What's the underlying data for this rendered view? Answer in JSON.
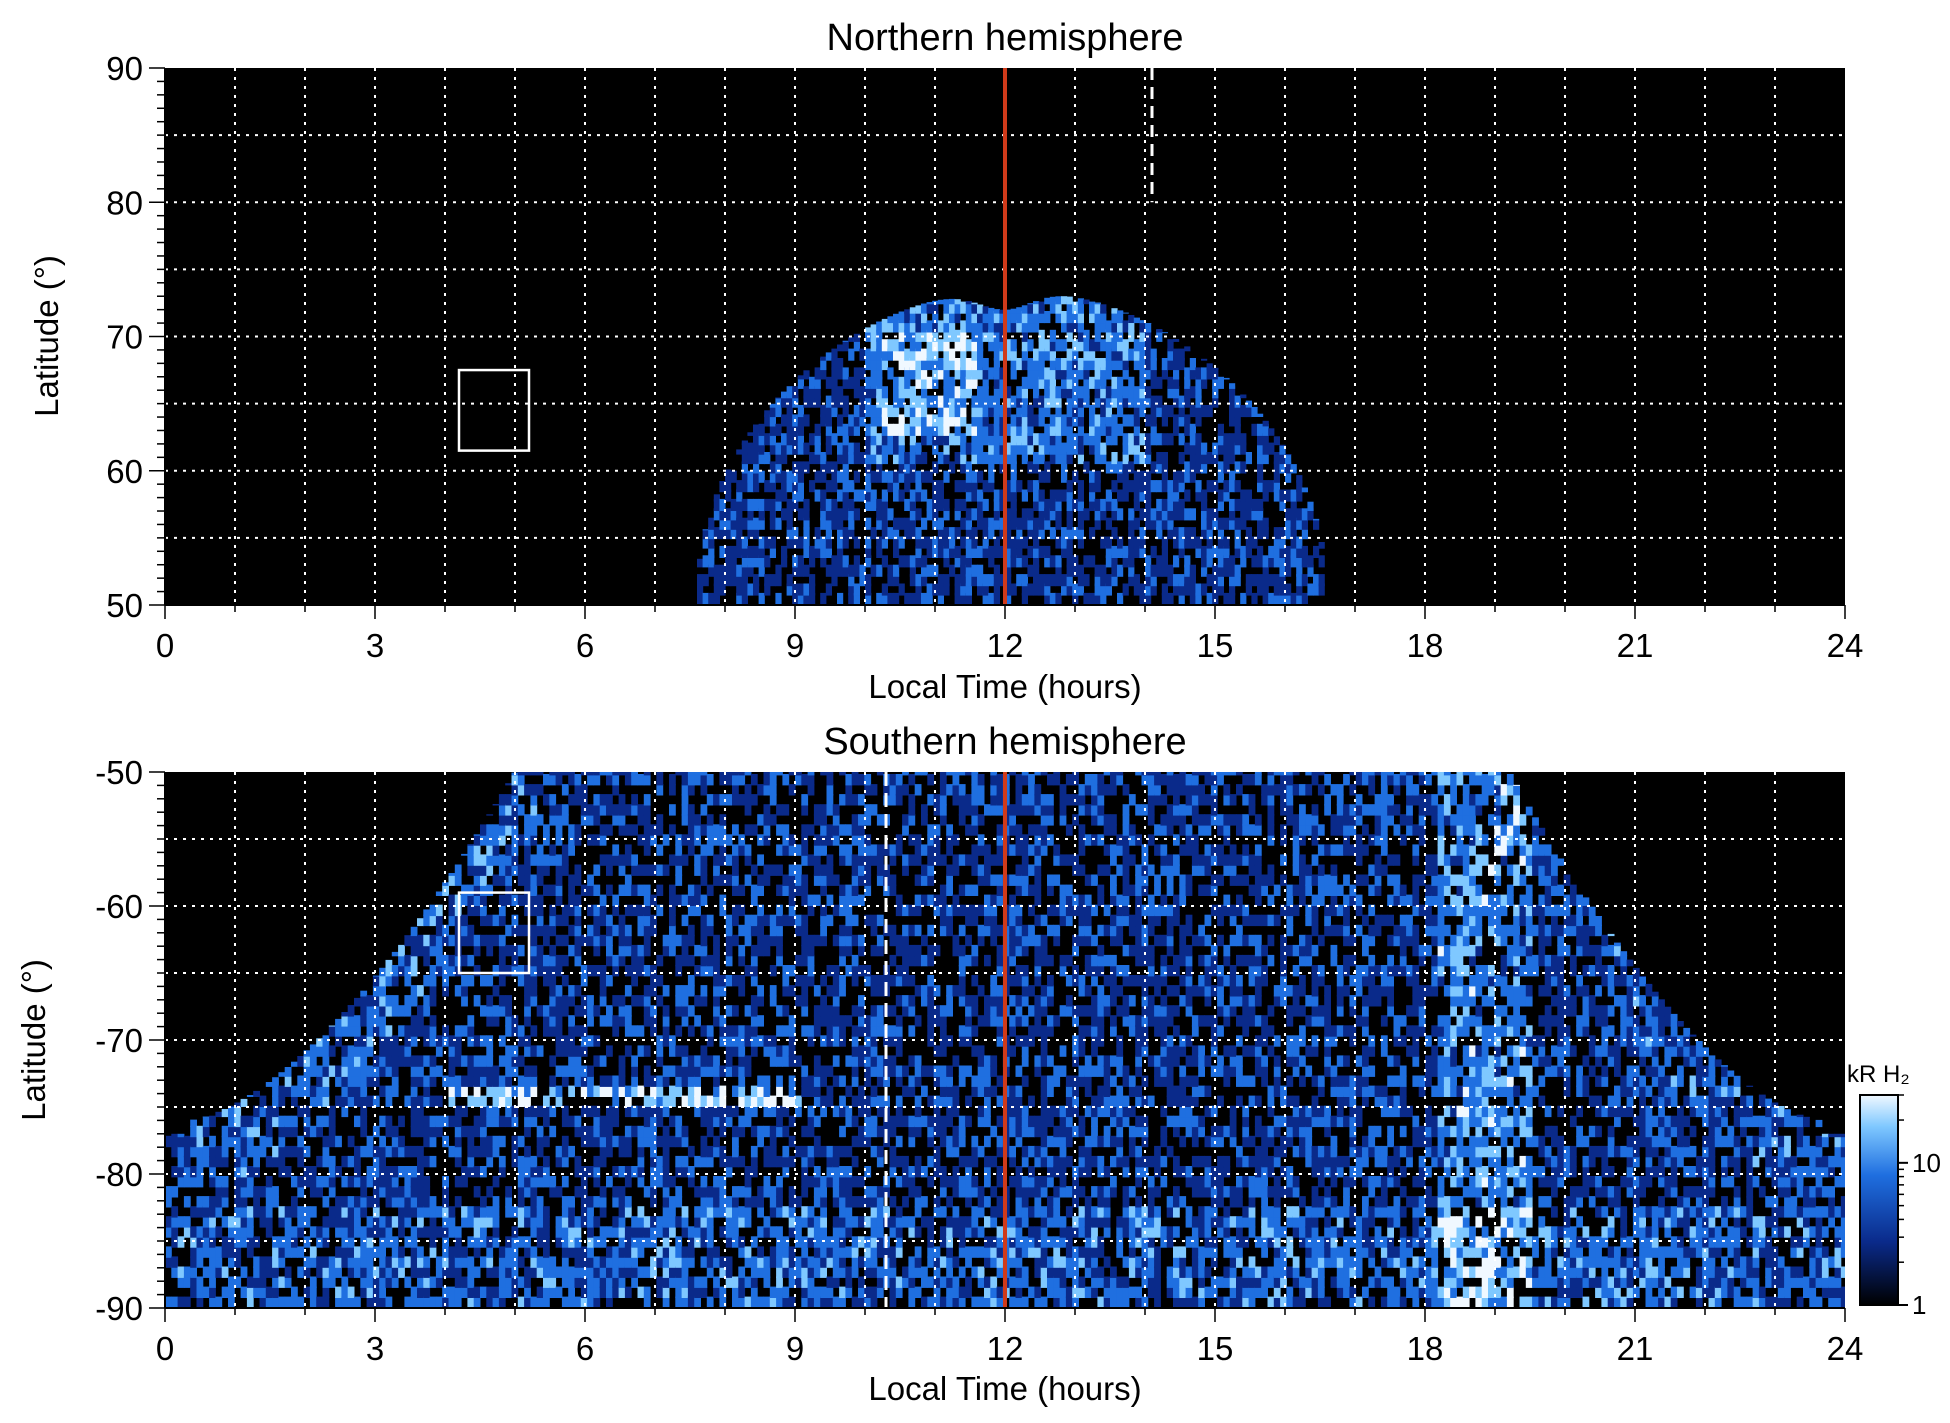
{
  "colors": {
    "background": "#000000",
    "aurora_dim": "#0a2a8a",
    "aurora_mid": "#1f6fe0",
    "aurora_bright": "#7fc8ff",
    "aurora_peak": "#f0f8ff",
    "noon_line": "#d03a1a",
    "grid": "#ffffff",
    "box": "#ffffff"
  },
  "chart_data": [
    {
      "type": "heatmap",
      "title": "Northern hemisphere",
      "xlabel": "Local Time (hours)",
      "ylabel": "Latitude (°)",
      "xlim": [
        0,
        24
      ],
      "ylim": [
        50,
        90
      ],
      "xticks": [
        0,
        3,
        6,
        9,
        12,
        15,
        18,
        21,
        24
      ],
      "yticks": [
        50,
        60,
        70,
        80,
        90
      ],
      "grid": true,
      "noon_line_lt": 12,
      "dashed_line": {
        "lt": 14.1,
        "lat_range": [
          80,
          90
        ]
      },
      "box": {
        "lt_range": [
          4.2,
          5.2
        ],
        "lat_range": [
          61.5,
          67.5
        ]
      },
      "emission_region": {
        "lt_range": [
          7.6,
          16.6
        ],
        "edge_lat_at_noon": 72,
        "edge_lat_peaks": 73.5,
        "bright_oval_lt": [
          10,
          14
        ],
        "bright_oval_lat": [
          60,
          72
        ]
      }
    },
    {
      "type": "heatmap",
      "title": "Southern hemisphere",
      "xlabel": "Local Time (hours)",
      "ylabel": "Latitude (°)",
      "xlim": [
        0,
        24
      ],
      "ylim": [
        -90,
        -50
      ],
      "xticks": [
        0,
        3,
        6,
        9,
        12,
        15,
        18,
        21,
        24
      ],
      "yticks": [
        -90,
        -80,
        -70,
        -60,
        -50
      ],
      "grid": true,
      "noon_line_lt": 12,
      "dashed_line": {
        "lt": 10.3,
        "lat_range": [
          -90,
          -50
        ]
      },
      "box": {
        "lt_range": [
          4.2,
          5.2
        ],
        "lat_range": [
          -65,
          -59
        ]
      },
      "emission_region": {
        "edge_lat_at_ends": -77,
        "edge_lt_top": [
          5.0,
          19.2
        ],
        "bright_arc": {
          "lt_range": [
            4,
            9
          ],
          "lat": -74.5
        },
        "bright_band_lt": 18.8
      },
      "colorbar": {
        "label": "kR H₂",
        "scale": "log",
        "range": [
          1,
          30
        ],
        "tick_labels": [
          "1",
          "10"
        ]
      }
    }
  ]
}
